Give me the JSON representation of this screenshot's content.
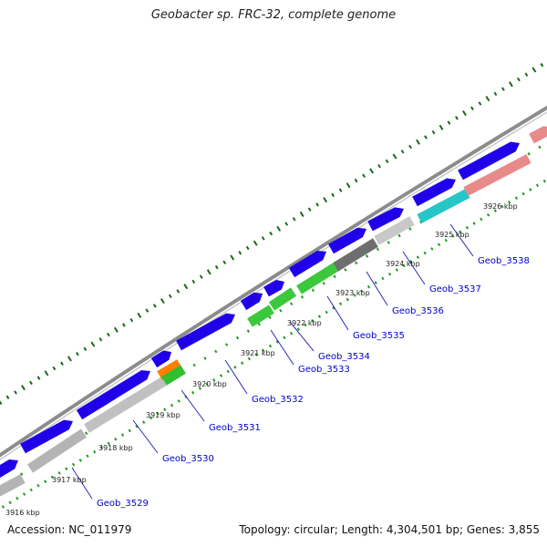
{
  "title": "Geobacter sp. FRC-32, complete genome",
  "footer": {
    "accession": "Accession: NC_011979",
    "summary": "Topology: circular; Length: 4,304,501 bp; Genes: 3,855"
  },
  "colors": {
    "forward_gene": "#1f00e8",
    "backbone": "#8c8c8c",
    "tick_dark": "#1a6b1a",
    "tick_light": "#1f9a1f",
    "leader": "#2a2ab8",
    "label": "#0000cc"
  },
  "bp_ticks": [
    "3916 kbp",
    "3917 kbp",
    "3918 kbp",
    "3919 kbp",
    "3920 kbp",
    "3921 kbp",
    "3922 kbp",
    "3923 kbp",
    "3924 kbp",
    "3925 kbp",
    "3926 kbp"
  ],
  "gene_labels": [
    "Geob_3529",
    "Geob_3530",
    "Geob_3531",
    "Geob_3532",
    "Geob_3533",
    "Geob_3534",
    "Geob_3535",
    "Geob_3536",
    "Geob_3537",
    "Geob_3538"
  ]
}
